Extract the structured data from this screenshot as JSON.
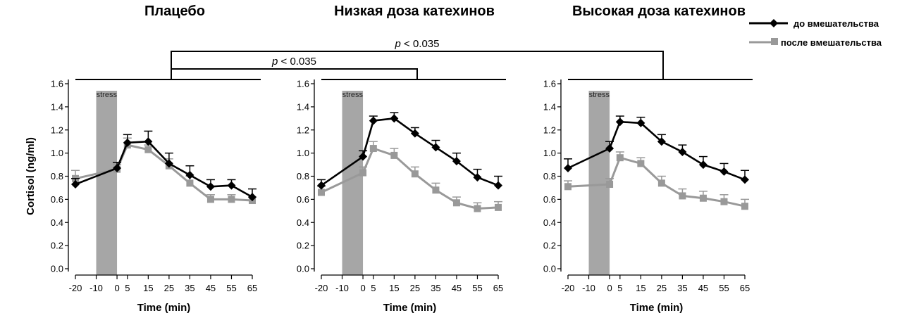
{
  "legend": {
    "before": "до вмешательства",
    "after": "после вмешательства"
  },
  "colors": {
    "before": "#000000",
    "after": "#999999",
    "stress": "#a6a6a6"
  },
  "comparisons": [
    {
      "label": "p < 0.035",
      "from_panel": 0,
      "to_panel": 2
    },
    {
      "label": "p < 0.035",
      "from_panel": 0,
      "to_panel": 1
    }
  ],
  "chart_data": [
    {
      "type": "line",
      "title": "Плацебо",
      "xlabel": "Time (min)",
      "ylabel": "Cortisol (ng/ml)",
      "stress_label": "stress",
      "stress_range": [
        -10,
        0
      ],
      "xticks": [
        "-20",
        "-10",
        "0",
        "5",
        "15",
        "25",
        "35",
        "45",
        "55",
        "65"
      ],
      "yticks": [
        "0.0",
        "0.2",
        "0.4",
        "0.6",
        "0.8",
        "1.0",
        "1.2",
        "1.4",
        "1.6"
      ],
      "ylim": [
        0,
        1.6
      ],
      "xlim": [
        -20,
        65
      ],
      "series": [
        {
          "key": "before",
          "x": [
            -20,
            0,
            5,
            15,
            25,
            35,
            45,
            55,
            65
          ],
          "y": [
            0.73,
            0.87,
            1.09,
            1.1,
            0.91,
            0.81,
            0.71,
            0.72,
            0.62
          ],
          "err": [
            0.05,
            0.05,
            0.07,
            0.09,
            0.09,
            0.08,
            0.06,
            0.05,
            0.07
          ]
        },
        {
          "key": "after",
          "x": [
            -20,
            0,
            5,
            15,
            25,
            35,
            45,
            55,
            65
          ],
          "y": [
            0.78,
            0.86,
            1.07,
            1.03,
            0.89,
            0.74,
            0.6,
            0.6,
            0.59
          ],
          "err": [
            0.07,
            0.04,
            0.06,
            0.04,
            0.06,
            0.06,
            0.04,
            0.04,
            0.03
          ]
        }
      ]
    },
    {
      "type": "line",
      "title": "Низкая доза катехинов",
      "xlabel": "Time (min)",
      "ylabel": "",
      "stress_label": "stress",
      "stress_range": [
        -10,
        0
      ],
      "xticks": [
        "-20",
        "-10",
        "0",
        "5",
        "15",
        "25",
        "35",
        "45",
        "55",
        "65"
      ],
      "yticks": [
        "0.0",
        "0.2",
        "0.4",
        "0.6",
        "0.8",
        "1.0",
        "1.2",
        "1.4",
        "1.6"
      ],
      "ylim": [
        0,
        1.6
      ],
      "xlim": [
        -20,
        65
      ],
      "series": [
        {
          "key": "before",
          "x": [
            -20,
            0,
            5,
            15,
            25,
            35,
            45,
            55,
            65
          ],
          "y": [
            0.72,
            0.97,
            1.28,
            1.3,
            1.17,
            1.05,
            0.93,
            0.79,
            0.72
          ],
          "err": [
            0.05,
            0.05,
            0.04,
            0.05,
            0.05,
            0.06,
            0.07,
            0.07,
            0.08
          ]
        },
        {
          "key": "after",
          "x": [
            -20,
            0,
            5,
            15,
            25,
            35,
            45,
            55,
            65
          ],
          "y": [
            0.66,
            0.83,
            1.04,
            0.98,
            0.82,
            0.68,
            0.57,
            0.52,
            0.53
          ],
          "err": [
            0.05,
            0.05,
            0.06,
            0.06,
            0.06,
            0.06,
            0.05,
            0.05,
            0.05
          ]
        }
      ]
    },
    {
      "type": "line",
      "title": "Высокая доза катехинов",
      "xlabel": "Time (min)",
      "ylabel": "",
      "stress_label": "stress",
      "stress_range": [
        -10,
        0
      ],
      "xticks": [
        "-20",
        "-10",
        "0",
        "5",
        "15",
        "25",
        "35",
        "45",
        "55",
        "65"
      ],
      "yticks": [
        "0.0",
        "0.2",
        "0.4",
        "0.6",
        "0.8",
        "1.0",
        "1.2",
        "1.4",
        "1.6"
      ],
      "ylim": [
        0,
        1.6
      ],
      "xlim": [
        -20,
        65
      ],
      "series": [
        {
          "key": "before",
          "x": [
            -20,
            0,
            5,
            15,
            25,
            35,
            45,
            55,
            65
          ],
          "y": [
            0.87,
            1.04,
            1.27,
            1.26,
            1.1,
            1.01,
            0.9,
            0.84,
            0.77
          ],
          "err": [
            0.08,
            0.06,
            0.05,
            0.05,
            0.06,
            0.06,
            0.07,
            0.07,
            0.08
          ]
        },
        {
          "key": "after",
          "x": [
            -20,
            0,
            5,
            15,
            25,
            35,
            45,
            55,
            65
          ],
          "y": [
            0.71,
            0.73,
            0.96,
            0.91,
            0.74,
            0.63,
            0.61,
            0.58,
            0.54
          ],
          "err": [
            0.05,
            0.05,
            0.05,
            0.05,
            0.06,
            0.06,
            0.06,
            0.06,
            0.06
          ]
        }
      ]
    }
  ]
}
